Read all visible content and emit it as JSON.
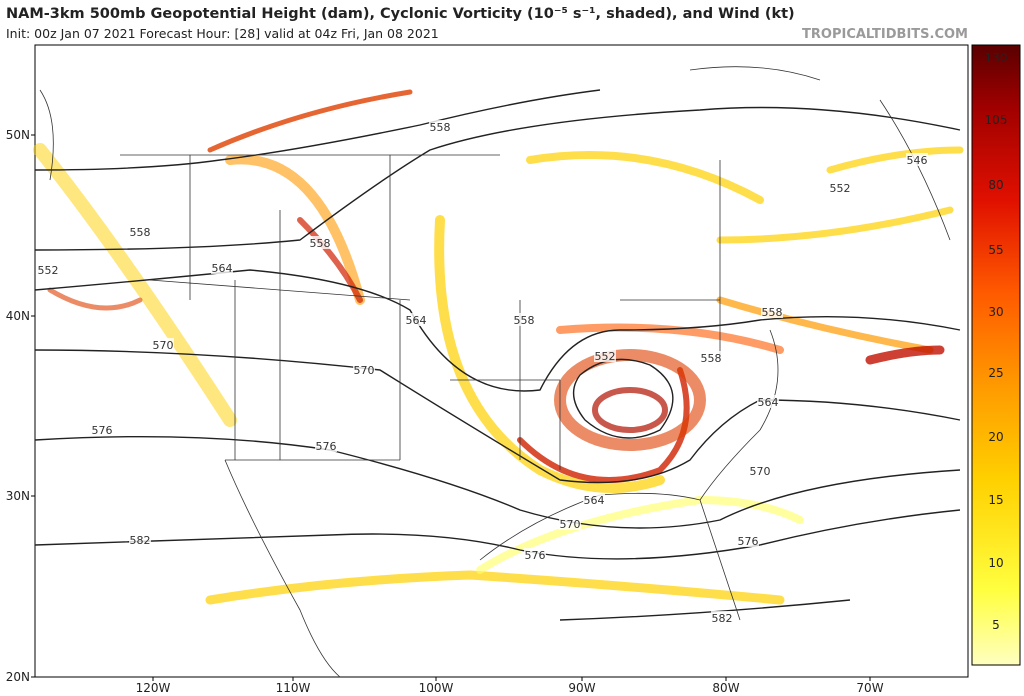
{
  "header": {
    "title": "NAM-3km 500mb Geopotential Height (dam), Cyclonic Vorticity (10⁻⁵ s⁻¹, shaded), and Wind (kt)",
    "subtitle": "Init: 00z Jan 07 2021   Forecast Hour: [28]   valid at 04z Fri, Jan 08 2021",
    "credit": "TROPICALTIDBITS.COM"
  },
  "lat_labels": [
    "50N",
    "40N",
    "30N",
    "20N"
  ],
  "lon_labels": [
    "120W",
    "110W",
    "100W",
    "90W",
    "80W",
    "70W"
  ],
  "colorbar": {
    "ticks": [
      "130",
      "105",
      "80",
      "55",
      "30",
      "25",
      "20",
      "15",
      "10",
      "5"
    ]
  },
  "contour_labels": [
    "558",
    "558",
    "558",
    "552",
    "564",
    "570",
    "570",
    "576",
    "576",
    "564",
    "558",
    "552",
    "558",
    "558",
    "552",
    "546",
    "564",
    "570",
    "564",
    "570",
    "576",
    "576",
    "582",
    "582"
  ]
}
